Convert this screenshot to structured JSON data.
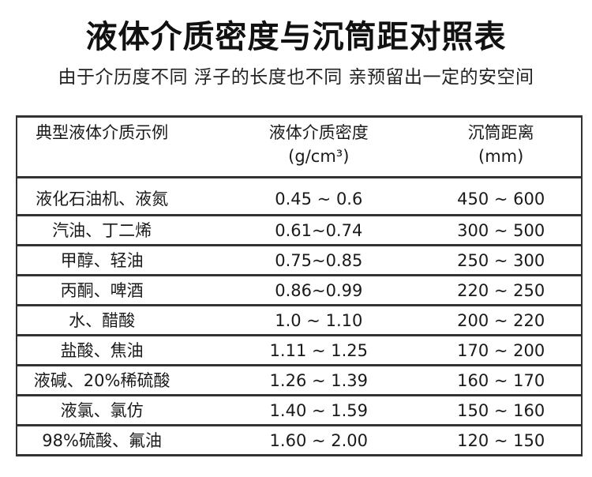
{
  "title": "液体介质密度与沉筒距对照表",
  "subtitle": "由于介历度不同 浮子的长度也不同 亲预留出一定的安空间",
  "table": {
    "headers": {
      "example": "典型液体介质示例",
      "density": "液体介质密度",
      "density_unit": "(g/cm³)",
      "distance": "沉筒距离",
      "distance_unit": "(mm)"
    },
    "rows": [
      {
        "example": "液化石油机、液氮",
        "density": "0.45 ~ 0.6",
        "distance": "450 ~ 600"
      },
      {
        "example": "汽油、丁二烯",
        "density": "0.61~0.74",
        "distance": "300 ~ 500"
      },
      {
        "example": "甲醇、轻油",
        "density": "0.75~0.85",
        "distance": "250 ~ 300"
      },
      {
        "example": "丙酮、啤酒",
        "density": "0.86~0.99",
        "distance": "220 ~ 250"
      },
      {
        "example": "水、醋酸",
        "density": "1.0 ~ 1.10",
        "distance": "200 ~ 220"
      },
      {
        "example": "盐酸、焦油",
        "density": "1.11 ~ 1.25",
        "distance": "170 ~ 200"
      },
      {
        "example": "液碱、20%稀硫酸",
        "density": "1.26 ~ 1.39",
        "distance": "160 ~ 170"
      },
      {
        "example": "液氯、氯仿",
        "density": "1.40 ~ 1.59",
        "distance": "150 ~ 160"
      },
      {
        "example": "98%硫酸、氟油",
        "density": "1.60 ~ 2.00",
        "distance": "120 ~ 150"
      }
    ]
  }
}
